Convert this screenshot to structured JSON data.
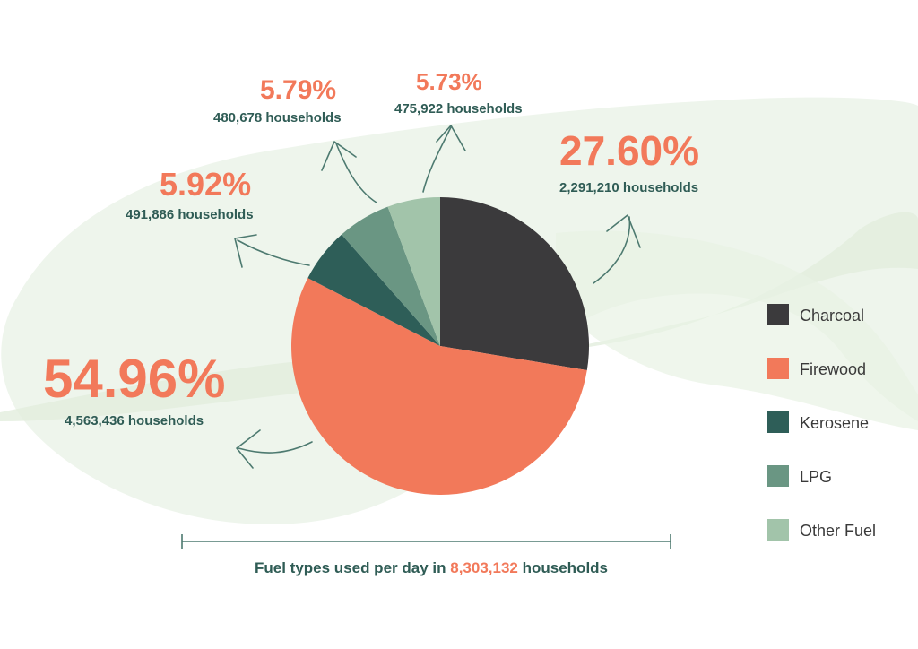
{
  "chart_data": {
    "type": "pie",
    "slices": [
      {
        "label": "Charcoal",
        "percent": "27.60%",
        "value": 27.6,
        "households": "2,291,210 households",
        "color": "#3b3a3c"
      },
      {
        "label": "Firewood",
        "percent": "54.96%",
        "value": 54.96,
        "households": "4,563,436 households",
        "color": "#f2795a"
      },
      {
        "label": "Kerosene",
        "percent": "5.92%",
        "value": 5.92,
        "households": "491,886 households",
        "color": "#2e5e58"
      },
      {
        "label": "LPG",
        "percent": "5.79%",
        "value": 5.79,
        "households": "480,678 households",
        "color": "#6a9683"
      },
      {
        "label": "Other Fuel",
        "percent": "5.73%",
        "value": 5.73,
        "households": "475,922 households",
        "color": "#a2c4aa"
      }
    ],
    "legend": "right",
    "caption": {
      "prefix": "Fuel types used per day in",
      "highlight": "8,303,132",
      "suffix": "households"
    }
  }
}
